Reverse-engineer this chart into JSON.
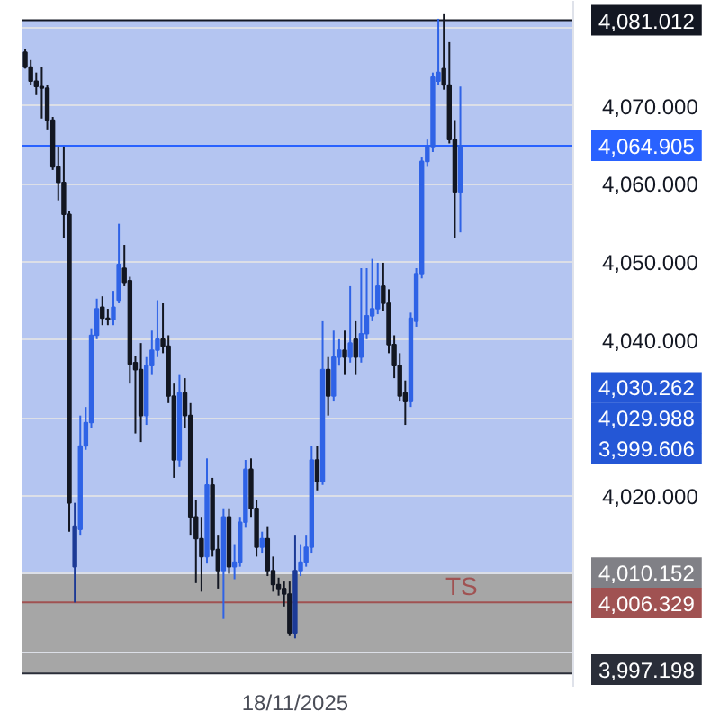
{
  "chart_data": {
    "type": "candlestick",
    "categories": [
      null,
      null,
      null,
      null,
      null,
      null,
      null,
      null,
      null,
      null,
      null,
      null,
      null,
      null,
      null,
      null,
      null,
      null,
      null,
      null,
      null,
      null,
      null,
      null,
      null,
      null,
      null,
      null,
      null,
      null,
      null,
      null,
      null,
      null,
      null,
      null,
      null,
      null,
      null,
      null,
      null,
      null,
      null,
      null,
      null,
      null,
      null,
      null,
      null,
      "18/11/2025",
      null,
      null,
      null,
      null,
      null,
      null,
      null,
      null,
      null,
      null,
      null,
      null,
      null,
      null,
      null,
      null,
      null,
      null,
      null,
      null,
      null,
      null,
      null,
      null,
      null,
      null,
      null,
      null,
      null,
      null,
      null,
      null,
      null,
      null,
      null,
      null,
      null,
      null,
      null,
      null,
      null,
      null,
      null,
      null,
      null,
      null,
      null,
      null,
      null,
      null
    ],
    "ohlc": [
      [
        4076.9,
        4077.3,
        4074.8,
        4075.0
      ],
      [
        4075.0,
        4075.9,
        4072.7,
        4073.2
      ],
      [
        4073.2,
        4074.3,
        4071.4,
        4072.5
      ],
      [
        4072.5,
        4075.0,
        4068.4,
        4072.3
      ],
      [
        4072.3,
        4072.7,
        4067.0,
        4068.2
      ],
      [
        4068.2,
        4068.6,
        4061.8,
        4062.2
      ],
      [
        4062.2,
        4064.8,
        4057.9,
        4060.2
      ],
      [
        4060.2,
        4064.8,
        4053.1,
        4056.1
      ],
      [
        4056.1,
        4056.5,
        4015.4,
        4019.1
      ],
      [
        4010.9,
        4019.1,
        4006.3,
        4016.1
      ],
      [
        4015.7,
        4030.3,
        4015.0,
        4026.4
      ],
      [
        4026.4,
        4031.4,
        4025.9,
        4029.4
      ],
      [
        4029.4,
        4041.5,
        4028.7,
        4040.6
      ],
      [
        4040.6,
        4045.3,
        4040.1,
        4044.0
      ],
      [
        4044.2,
        4045.6,
        4041.9,
        4042.8
      ],
      [
        4042.8,
        4044.0,
        4041.9,
        4042.6
      ],
      [
        4042.6,
        4046.3,
        4041.9,
        4044.2
      ],
      [
        4045.1,
        4054.9,
        4044.7,
        4049.7
      ],
      [
        4049.2,
        4052.2,
        4046.9,
        4047.4
      ],
      [
        4047.6,
        4048.1,
        4034.4,
        4036.9
      ],
      [
        4037.1,
        4038.0,
        4028.0,
        4036.2
      ],
      [
        4036.2,
        4039.6,
        4026.9,
        4030.3
      ],
      [
        4030.3,
        4037.8,
        4029.1,
        4036.7
      ],
      [
        4036.7,
        4041.2,
        4035.5,
        4038.7
      ],
      [
        4038.7,
        4045.1,
        4037.8,
        4040.1
      ],
      [
        4040.1,
        4044.7,
        4038.3,
        4039.2
      ],
      [
        4039.2,
        4040.6,
        4031.9,
        4032.8
      ],
      [
        4032.8,
        4034.4,
        4022.3,
        4024.6
      ],
      [
        4024.6,
        4035.5,
        4023.7,
        4033.2
      ],
      [
        4033.2,
        4035.1,
        4028.7,
        4030.3
      ],
      [
        4030.3,
        4031.9,
        4015.0,
        4017.3
      ],
      [
        4017.3,
        4019.5,
        4008.8,
        4014.5
      ],
      [
        4014.5,
        4017.3,
        4007.7,
        4012.2
      ],
      [
        4012.2,
        4024.8,
        4011.3,
        4021.4
      ],
      [
        4021.4,
        4022.3,
        4012.2,
        4013.1
      ],
      [
        4013.1,
        4015.0,
        4008.1,
        4010.4
      ],
      [
        4010.4,
        4018.4,
        4004.2,
        4017.3
      ],
      [
        4017.3,
        4018.4,
        4010.0,
        4010.9
      ],
      [
        4010.9,
        4013.8,
        4009.3,
        4011.5
      ],
      [
        4011.5,
        4017.3,
        4010.9,
        4016.6
      ],
      [
        4016.6,
        4024.6,
        4015.9,
        4023.4
      ],
      [
        4023.4,
        4024.8,
        4017.3,
        4018.4
      ],
      [
        4018.4,
        4019.5,
        4012.2,
        4013.4
      ],
      [
        4013.4,
        4015.4,
        4012.7,
        4014.5
      ],
      [
        4014.5,
        4016.1,
        4009.7,
        4010.4
      ],
      [
        4010.4,
        4012.2,
        4007.7,
        4008.6
      ],
      [
        4008.6,
        4009.5,
        4007.2,
        4008.1
      ],
      [
        4008.1,
        4009.0,
        4005.8,
        4007.4
      ],
      [
        4007.4,
        4009.0,
        4002.0,
        4002.4
      ],
      [
        4002.4,
        4015.0,
        4001.7,
        4010.4
      ],
      [
        4010.4,
        4013.8,
        4009.7,
        4011.5
      ],
      [
        4011.5,
        4015.0,
        4010.9,
        4013.4
      ],
      [
        4013.4,
        4026.4,
        4012.7,
        4024.6
      ],
      [
        4024.6,
        4026.4,
        4020.7,
        4021.8
      ],
      [
        4021.8,
        4042.4,
        4021.4,
        4036.2
      ],
      [
        4036.2,
        4037.8,
        4030.3,
        4032.8
      ],
      [
        4032.8,
        4041.2,
        4032.1,
        4037.8
      ],
      [
        4037.8,
        4040.1,
        4036.7,
        4038.7
      ],
      [
        4038.7,
        4041.2,
        4035.5,
        4037.8
      ],
      [
        4037.8,
        4046.9,
        4037.1,
        4039.6
      ],
      [
        4040.1,
        4042.4,
        4035.5,
        4037.8
      ],
      [
        4037.8,
        4049.2,
        4037.1,
        4040.8
      ],
      [
        4040.8,
        4049.2,
        4040.1,
        4043.1
      ],
      [
        4043.1,
        4050.4,
        4042.4,
        4044.0
      ],
      [
        4044.0,
        4049.9,
        4043.3,
        4046.9
      ],
      [
        4046.9,
        4049.9,
        4043.7,
        4044.7
      ],
      [
        4044.7,
        4046.5,
        4038.3,
        4039.4
      ],
      [
        4039.4,
        4040.6,
        4035.1,
        4036.7
      ],
      [
        4036.7,
        4038.3,
        4032.1,
        4032.8
      ],
      [
        4033.2,
        4034.8,
        4029.1,
        4032.1
      ],
      [
        4032.1,
        4043.5,
        4031.4,
        4042.8
      ],
      [
        4042.4,
        4049.2,
        4041.7,
        4048.5
      ],
      [
        4048.5,
        4063.4,
        4047.9,
        4062.9
      ],
      [
        4062.9,
        4065.7,
        4062.2,
        4064.8
      ],
      [
        4064.8,
        4074.3,
        4064.1,
        4073.7
      ],
      [
        4073.2,
        4081.2,
        4072.7,
        4074.3
      ],
      [
        4074.8,
        4081.9,
        4072.1,
        4072.7
      ],
      [
        4072.7,
        4078.2,
        4065.2,
        4065.7
      ],
      [
        4065.7,
        4068.2,
        4053.1,
        4059.0
      ],
      [
        4059.0,
        4072.5,
        4053.8,
        4064.905
      ],
      null,
      null,
      null,
      null,
      null,
      null,
      null,
      null,
      null,
      null,
      null,
      null,
      null,
      null,
      null,
      null,
      null,
      null,
      null,
      null
    ],
    "colors": [
      "#131722",
      "#131722",
      "#131722",
      "#131722",
      "#131722",
      "#131722",
      "#131722",
      "#131722",
      "#131722",
      "#1c3a96",
      "#2f63e6",
      "#2f63e6",
      "#2f63e6",
      "#2f63e6",
      "#131722",
      "#131722",
      "#2f63e6",
      "#2f63e6",
      "#131722",
      "#131722",
      "#131722",
      "#131722",
      "#2f63e6",
      "#2f63e6",
      "#2f63e6",
      "#131722",
      "#131722",
      "#131722",
      "#2f63e6",
      "#131722",
      "#131722",
      "#131722",
      "#131722",
      "#2f63e6",
      "#131722",
      "#131722",
      "#2f63e6",
      "#131722",
      "#2f63e6",
      "#2f63e6",
      "#2f63e6",
      "#131722",
      "#131722",
      "#2f63e6",
      "#131722",
      "#131722",
      "#131722",
      "#131722",
      "#131722",
      "#1c3a96",
      "#2f63e6",
      "#2f63e6",
      "#2f63e6",
      "#131722",
      "#2f63e6",
      "#131722",
      "#2f63e6",
      "#2f63e6",
      "#131722",
      "#2f63e6",
      "#131722",
      "#2f63e6",
      "#2f63e6",
      "#2f63e6",
      "#2f63e6",
      "#131722",
      "#131722",
      "#131722",
      "#131722",
      "#131722",
      "#2f63e6",
      "#2f63e6",
      "#2f63e6",
      "#2f63e6",
      "#2f63e6",
      "#2f63e6",
      "#131722",
      "#131722",
      "#131722",
      "#2f63e6",
      null,
      null,
      null,
      null,
      null,
      null,
      null,
      null,
      null,
      null,
      null,
      null,
      null,
      null,
      null,
      null,
      null,
      null,
      null,
      null
    ],
    "ylim": [
      3995.5,
      4083.5
    ],
    "yticks": [
      {
        "value": 4000,
        "label": null
      },
      {
        "value": 4010,
        "label": null
      },
      {
        "value": 4020,
        "label": "4,020.000"
      },
      {
        "value": 4030,
        "label": null
      },
      {
        "value": 4040,
        "label": "4,040.000"
      },
      {
        "value": 4050,
        "label": "4,050.000"
      },
      {
        "value": 4060,
        "label": "4,060.000"
      },
      {
        "value": 4070,
        "label": "4,070.000"
      },
      {
        "value": 4080,
        "label": null
      }
    ],
    "grid": "y",
    "bands": [
      {
        "axis": "y",
        "from": 3997.198,
        "to": 4010.152,
        "color": "#a6a6a6"
      },
      {
        "axis": "y",
        "from": 4010.152,
        "to": 4081.012,
        "color": "#b4c5f1"
      }
    ],
    "ref_lines": [
      {
        "axis": "y",
        "value": 4081.012,
        "label": "4,081.012",
        "color": "#131722"
      },
      {
        "axis": "y",
        "value": 4064.905,
        "label": "4,064.905",
        "color": "#2962ff"
      },
      {
        "axis": "y",
        "value": 4010.152,
        "label": "4,010.152",
        "color": "#808086"
      },
      {
        "axis": "y",
        "value": 4006.329,
        "label": "4,006.329",
        "color": "#a05252"
      },
      {
        "axis": "y",
        "value": 3997.198,
        "label": "3,997.198",
        "color": "#2a2e39"
      }
    ],
    "annotations": [
      {
        "text": "TS",
        "y": 4006.329
      },
      "4,030.262",
      "4,029.988",
      "3,999.606"
    ]
  }
}
